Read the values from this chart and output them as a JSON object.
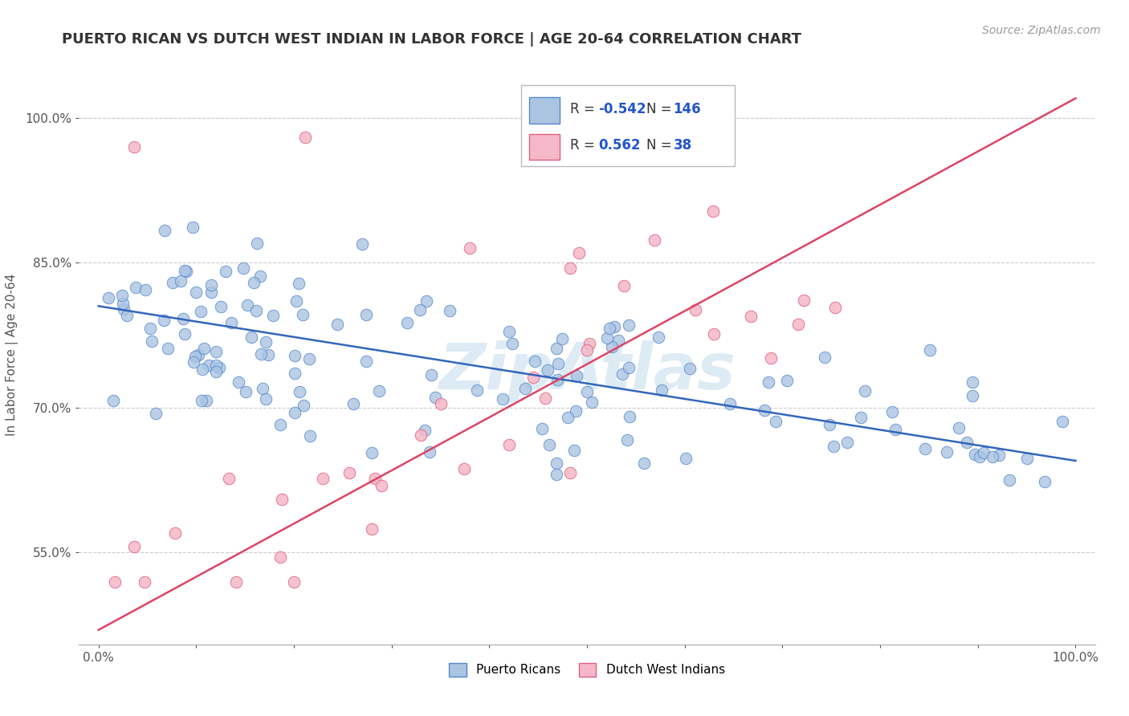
{
  "title": "PUERTO RICAN VS DUTCH WEST INDIAN IN LABOR FORCE | AGE 20-64 CORRELATION CHART",
  "source_text": "Source: ZipAtlas.com",
  "ylabel": "In Labor Force | Age 20-64",
  "watermark": "ZipAtlas",
  "xlim": [
    -0.02,
    1.02
  ],
  "ylim": [
    0.455,
    1.055
  ],
  "yticks": [
    0.55,
    0.7,
    0.85,
    1.0
  ],
  "xticks": [
    0.0,
    0.1,
    0.2,
    0.3,
    0.4,
    0.5,
    0.6,
    0.7,
    0.8,
    0.9,
    1.0
  ],
  "blue_R": -0.542,
  "blue_N": 146,
  "pink_R": 0.562,
  "pink_N": 38,
  "blue_color": "#aac4e2",
  "blue_edge": "#5588cc",
  "pink_color": "#f5b8c8",
  "pink_edge": "#e06080",
  "blue_line_color": "#3366bb",
  "pink_line_color": "#dd4466",
  "legend_blue_label": "Puerto Ricans",
  "legend_pink_label": "Dutch West Indians",
  "background_color": "#ffffff",
  "grid_color": "#cccccc",
  "title_color": "#333333",
  "r_value_color": "#2255cc",
  "blue_trend_x": [
    0.0,
    1.0
  ],
  "blue_trend_y": [
    0.805,
    0.645
  ],
  "pink_trend_x": [
    0.0,
    1.0
  ],
  "pink_trend_y": [
    0.47,
    1.02
  ]
}
